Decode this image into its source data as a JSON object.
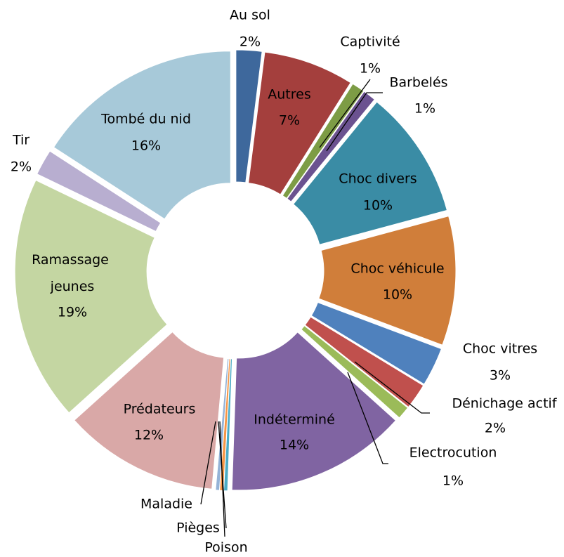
{
  "chart_data": {
    "type": "pie",
    "donut": true,
    "categories": [
      "Au sol",
      "Autres",
      "Captivité",
      "Barbelés",
      "Choc divers",
      "Choc véhicule",
      "Choc vitres",
      "Dénichage actif",
      "Electrocution",
      "Indéterminé",
      "Poison",
      "Pièges",
      "Maladie",
      "Prédateurs",
      "Ramassage jeunes",
      "Tir",
      "Tombé du nid"
    ],
    "values": [
      2,
      7,
      1,
      1,
      10,
      10,
      3,
      2,
      1,
      14,
      0.3,
      0.3,
      0.3,
      12,
      19,
      2,
      16
    ],
    "value_labels": [
      "2%",
      "7%",
      "1%",
      "1%",
      "10%",
      "10%",
      "3%",
      "2%",
      "1%",
      "14%",
      null,
      null,
      null,
      "12%",
      "19%",
      "2%",
      "16%"
    ],
    "colors": [
      "#3e689c",
      "#a43f3d",
      "#7d9c45",
      "#6b5290",
      "#3a8ca5",
      "#d07e3a",
      "#4f81bd",
      "#c0504d",
      "#9bbb59",
      "#8064a2",
      "#4bacc6",
      "#f79646",
      "#95b3d7",
      "#d9a8a7",
      "#c4d6a2",
      "#b8aed0",
      "#a7c9d9"
    ]
  }
}
